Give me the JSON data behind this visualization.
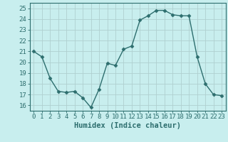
{
  "x": [
    0,
    1,
    2,
    3,
    4,
    5,
    6,
    7,
    8,
    9,
    10,
    11,
    12,
    13,
    14,
    15,
    16,
    17,
    18,
    19,
    20,
    21,
    22,
    23
  ],
  "y": [
    21.0,
    20.5,
    18.5,
    17.3,
    17.2,
    17.3,
    16.7,
    15.8,
    17.5,
    19.9,
    19.7,
    21.2,
    21.5,
    23.9,
    24.3,
    24.8,
    24.8,
    24.4,
    24.3,
    24.3,
    20.5,
    18.0,
    17.0,
    16.9
  ],
  "line_color": "#2d6e6e",
  "marker": "D",
  "marker_size": 2.5,
  "bg_color": "#c8eeee",
  "grid_color": "#b0d0d0",
  "xlabel": "Humidex (Indice chaleur)",
  "ylim": [
    15.5,
    25.5
  ],
  "xlim": [
    -0.5,
    23.5
  ],
  "yticks": [
    16,
    17,
    18,
    19,
    20,
    21,
    22,
    23,
    24,
    25
  ],
  "xticks": [
    0,
    1,
    2,
    3,
    4,
    5,
    6,
    7,
    8,
    9,
    10,
    11,
    12,
    13,
    14,
    15,
    16,
    17,
    18,
    19,
    20,
    21,
    22,
    23
  ],
  "tick_label_fontsize": 6.5,
  "xlabel_fontsize": 7.5
}
